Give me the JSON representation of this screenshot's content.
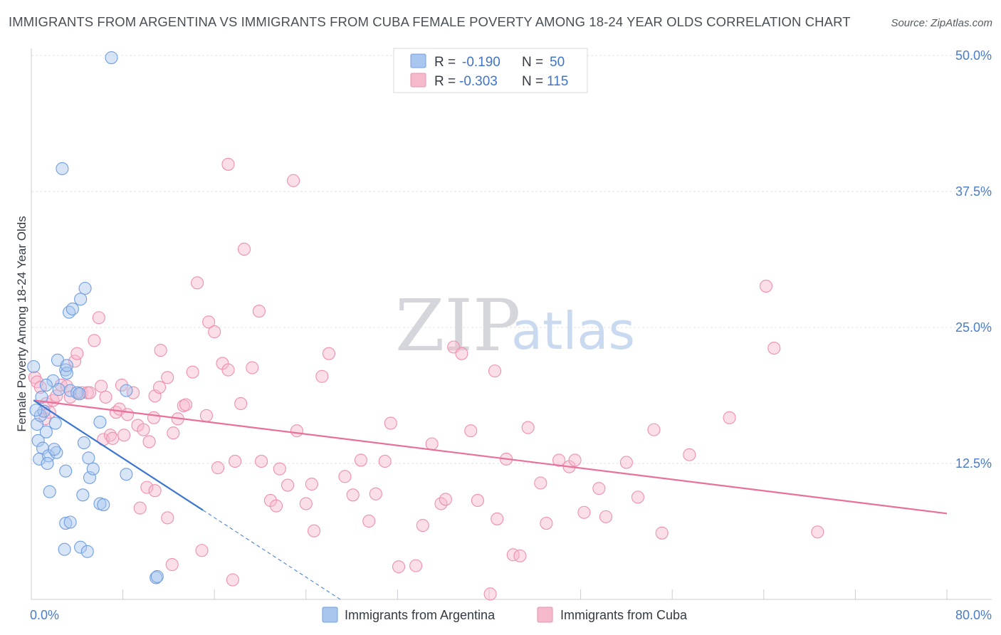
{
  "title": "IMMIGRANTS FROM ARGENTINA VS IMMIGRANTS FROM CUBA FEMALE POVERTY AMONG 18-24 YEAR OLDS CORRELATION CHART",
  "source": "Source: ZipAtlas.com",
  "watermark": {
    "zip": "ZIP",
    "atlas": "atlas"
  },
  "colors": {
    "argentina_fill": "#a9c6ee",
    "argentina_stroke": "#6f9ee0",
    "argentina_line": "#3a76d0",
    "cuba_fill": "#f6b9cc",
    "cuba_stroke": "#ee8fad",
    "cuba_line": "#e8709a",
    "tick_label": "#4a7cc8",
    "grid": "#dde0e6"
  },
  "chart_data": {
    "type": "scatter",
    "title": "IMMIGRANTS FROM ARGENTINA VS IMMIGRANTS FROM CUBA FEMALE POVERTY AMONG 18-24 YEAR OLDS CORRELATION CHART",
    "xlabel": "",
    "ylabel": "Female Poverty Among 18-24 Year Olds",
    "xlim": [
      0,
      80
    ],
    "ylim": [
      0,
      50
    ],
    "x_tick_labels": [
      "0.0%",
      "80.0%"
    ],
    "y_ticks": [
      12.5,
      25.0,
      37.5,
      50.0
    ],
    "y_tick_labels": [
      "12.5%",
      "25.0%",
      "37.5%",
      "50.0%"
    ],
    "legend": {
      "rows": [
        {
          "r_label": "R =",
          "r_value": "-0.190",
          "n_label": "N =",
          "n_value": "50"
        },
        {
          "r_label": "R =",
          "r_value": "-0.303",
          "n_label": "N =",
          "n_value": "115"
        }
      ],
      "bottom": [
        "Immigrants from Argentina",
        "Immigrants from Cuba"
      ]
    },
    "series": [
      {
        "name": "Immigrants from Argentina",
        "r": -0.19,
        "n": 50,
        "trend": {
          "x0": 0.2,
          "y0": 18.3,
          "x1": 15.0,
          "y1": 8.2,
          "dash_x1": 27.0,
          "dash_y1": 0.0
        },
        "points": [
          [
            0.5,
            16.1
          ],
          [
            0.6,
            14.6
          ],
          [
            1.0,
            13.9
          ],
          [
            0.8,
            16.9
          ],
          [
            1.1,
            17.3
          ],
          [
            1.3,
            15.4
          ],
          [
            0.7,
            12.9
          ],
          [
            1.5,
            13.2
          ],
          [
            1.9,
            20.1
          ],
          [
            2.1,
            16.2
          ],
          [
            2.3,
            22.0
          ],
          [
            2.4,
            19.3
          ],
          [
            3.0,
            21.1
          ],
          [
            3.1,
            20.8
          ],
          [
            3.4,
            19.2
          ],
          [
            3.3,
            26.4
          ],
          [
            3.6,
            26.7
          ],
          [
            4.3,
            27.6
          ],
          [
            4.0,
            19.0
          ],
          [
            4.2,
            18.9
          ],
          [
            4.7,
            28.6
          ],
          [
            4.6,
            14.4
          ],
          [
            5.0,
            13.0
          ],
          [
            1.4,
            12.5
          ],
          [
            2.2,
            13.5
          ],
          [
            3.0,
            11.8
          ],
          [
            1.6,
            9.9
          ],
          [
            4.5,
            9.6
          ],
          [
            5.1,
            11.2
          ],
          [
            5.4,
            12.0
          ],
          [
            6.0,
            8.8
          ],
          [
            6.3,
            8.7
          ],
          [
            3.0,
            7.0
          ],
          [
            3.4,
            7.1
          ],
          [
            4.3,
            4.8
          ],
          [
            4.9,
            4.4
          ],
          [
            2.9,
            4.6
          ],
          [
            1.3,
            19.7
          ],
          [
            0.9,
            18.6
          ],
          [
            3.1,
            21.5
          ],
          [
            8.3,
            19.2
          ],
          [
            8.3,
            11.5
          ],
          [
            10.9,
            2.0
          ],
          [
            11.0,
            2.1
          ],
          [
            2.7,
            39.6
          ],
          [
            7.0,
            49.8
          ],
          [
            0.2,
            21.4
          ],
          [
            0.4,
            17.4
          ],
          [
            2.0,
            13.8
          ],
          [
            6.0,
            16.3
          ]
        ]
      },
      {
        "name": "Immigrants from Cuba",
        "r": -0.303,
        "n": 115,
        "trend": {
          "x0": 0.2,
          "y0": 18.3,
          "x1": 80.0,
          "y1": 7.9
        },
        "points": [
          [
            0.3,
            20.4
          ],
          [
            0.5,
            20.0
          ],
          [
            0.8,
            19.5
          ],
          [
            1.2,
            16.6
          ],
          [
            1.3,
            18.0
          ],
          [
            1.6,
            17.2
          ],
          [
            1.9,
            18.3
          ],
          [
            2.2,
            18.7
          ],
          [
            2.6,
            19.7
          ],
          [
            3.1,
            19.6
          ],
          [
            3.4,
            18.6
          ],
          [
            3.8,
            21.9
          ],
          [
            4.0,
            22.6
          ],
          [
            4.4,
            19.0
          ],
          [
            4.9,
            19.0
          ],
          [
            5.1,
            19.0
          ],
          [
            5.5,
            23.8
          ],
          [
            5.9,
            25.9
          ],
          [
            6.1,
            19.6
          ],
          [
            6.5,
            18.6
          ],
          [
            6.3,
            14.7
          ],
          [
            6.9,
            15.1
          ],
          [
            7.1,
            14.8
          ],
          [
            7.4,
            17.2
          ],
          [
            7.7,
            17.5
          ],
          [
            7.9,
            19.7
          ],
          [
            8.1,
            15.1
          ],
          [
            8.4,
            17.0
          ],
          [
            8.9,
            19.0
          ],
          [
            9.3,
            16.0
          ],
          [
            9.8,
            15.6
          ],
          [
            10.3,
            14.5
          ],
          [
            10.7,
            16.7
          ],
          [
            10.8,
            18.7
          ],
          [
            11.2,
            19.5
          ],
          [
            11.3,
            22.9
          ],
          [
            11.9,
            20.4
          ],
          [
            12.4,
            15.3
          ],
          [
            12.8,
            16.6
          ],
          [
            13.3,
            17.8
          ],
          [
            13.5,
            17.9
          ],
          [
            14.1,
            20.9
          ],
          [
            14.5,
            29.1
          ],
          [
            15.3,
            16.9
          ],
          [
            15.5,
            25.5
          ],
          [
            16.0,
            24.6
          ],
          [
            16.3,
            12.1
          ],
          [
            16.7,
            21.7
          ],
          [
            17.2,
            21.1
          ],
          [
            17.8,
            12.7
          ],
          [
            18.3,
            18.0
          ],
          [
            18.6,
            32.2
          ],
          [
            19.3,
            21.3
          ],
          [
            19.9,
            26.5
          ],
          [
            20.1,
            12.7
          ],
          [
            20.9,
            9.1
          ],
          [
            21.4,
            8.6
          ],
          [
            21.7,
            12.0
          ],
          [
            22.4,
            10.5
          ],
          [
            23.2,
            15.5
          ],
          [
            24.0,
            8.8
          ],
          [
            24.5,
            10.6
          ],
          [
            24.7,
            6.3
          ],
          [
            25.4,
            20.5
          ],
          [
            26.0,
            22.6
          ],
          [
            27.4,
            11.3
          ],
          [
            28.1,
            9.6
          ],
          [
            28.8,
            12.8
          ],
          [
            29.5,
            7.2
          ],
          [
            30.1,
            9.7
          ],
          [
            30.9,
            12.7
          ],
          [
            31.4,
            16.2
          ],
          [
            32.1,
            3.0
          ],
          [
            33.6,
            3.1
          ],
          [
            34.2,
            6.8
          ],
          [
            35.0,
            14.3
          ],
          [
            35.8,
            8.8
          ],
          [
            36.2,
            9.2
          ],
          [
            36.9,
            23.2
          ],
          [
            37.6,
            22.6
          ],
          [
            38.4,
            15.5
          ],
          [
            39.0,
            9.1
          ],
          [
            40.1,
            0.5
          ],
          [
            40.5,
            21.0
          ],
          [
            40.7,
            7.4
          ],
          [
            41.5,
            12.9
          ],
          [
            42.1,
            4.1
          ],
          [
            42.7,
            4.0
          ],
          [
            43.4,
            15.8
          ],
          [
            44.5,
            10.7
          ],
          [
            45.0,
            7.0
          ],
          [
            46.1,
            12.8
          ],
          [
            47.0,
            12.2
          ],
          [
            47.5,
            12.8
          ],
          [
            48.3,
            8.0
          ],
          [
            49.6,
            10.2
          ],
          [
            50.2,
            7.6
          ],
          [
            52.0,
            12.6
          ],
          [
            53.0,
            9.4
          ],
          [
            54.4,
            15.6
          ],
          [
            55.1,
            6.1
          ],
          [
            57.5,
            13.3
          ],
          [
            61.0,
            16.7
          ],
          [
            64.2,
            28.8
          ],
          [
            64.9,
            23.1
          ],
          [
            68.7,
            6.2
          ],
          [
            9.5,
            8.4
          ],
          [
            11.9,
            7.5
          ],
          [
            12.3,
            3.2
          ],
          [
            14.9,
            4.5
          ],
          [
            17.6,
            1.8
          ],
          [
            10.1,
            10.3
          ],
          [
            10.8,
            10.0
          ],
          [
            17.2,
            40.0
          ],
          [
            22.9,
            38.5
          ]
        ]
      }
    ]
  }
}
